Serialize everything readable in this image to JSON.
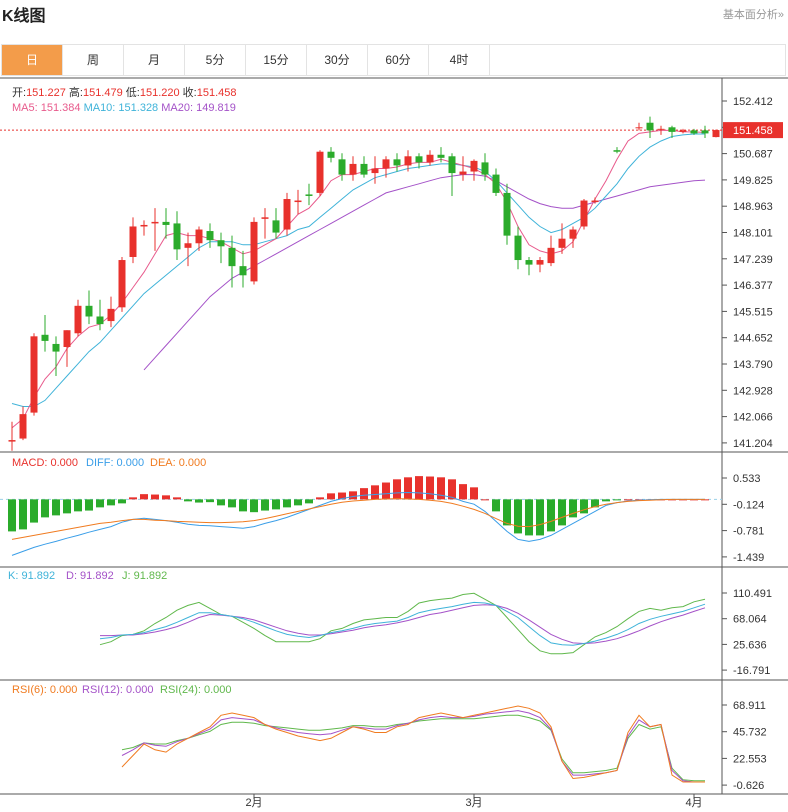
{
  "header": {
    "title": "K线图",
    "link": "基本面分析»"
  },
  "tabs": [
    "日",
    "周",
    "月",
    "5分",
    "15分",
    "30分",
    "60分",
    "4时"
  ],
  "info": {
    "open_label": "开:",
    "open": "151.227",
    "high_label": "高:",
    "high": "151.479",
    "low_label": "低:",
    "low": "151.220",
    "close_label": "收:",
    "close": "151.458",
    "ma5_label": "MA5:",
    "ma5": "151.384",
    "ma10_label": "MA10:",
    "ma10": "151.328",
    "ma20_label": "MA20:",
    "ma20": "149.819"
  },
  "macd_legend": {
    "macd": "MACD: 0.000",
    "diff": "DIFF: 0.000",
    "dea": "DEA: 0.000"
  },
  "kdj_legend": {
    "k": "K: 91.892",
    "d": "D: 91.892",
    "j": "J: 91.892"
  },
  "rsi_legend": {
    "r6": "RSI(6): 0.000",
    "r12": "RSI(12): 0.000",
    "r24": "RSI(24): 0.000"
  },
  "price_axis": [
    "152.412",
    "151.550",
    "150.687",
    "149.825",
    "148.963",
    "148.101",
    "147.239",
    "146.377",
    "145.515",
    "144.652",
    "143.790",
    "142.928",
    "142.066",
    "141.204"
  ],
  "last_price": "151.458",
  "macd_axis": [
    "0.533",
    "-0.124",
    "-0.781",
    "-1.439"
  ],
  "kdj_axis": [
    "110.491",
    "68.064",
    "25.636",
    "-16.791"
  ],
  "rsi_axis": [
    "68.911",
    "45.732",
    "22.553",
    "-0.626"
  ],
  "x_labels": [
    {
      "text": "2月",
      "index": 21
    },
    {
      "text": "3月",
      "index": 41
    },
    {
      "text": "4月",
      "index": 61
    }
  ],
  "colors": {
    "up": "#e8312c",
    "down": "#2bab2b",
    "ma5": "#e85a8c",
    "ma10": "#3fb3d9",
    "ma20": "#a452c8",
    "accent": "#f39c4a",
    "diff": "#3a9ee8",
    "dea": "#f07b20",
    "j": "#60b84c"
  },
  "chart_data": {
    "type": "candlestick",
    "price_range": [
      140.9,
      152.8
    ],
    "candles": [
      {
        "o": 141.25,
        "h": 141.9,
        "l": 140.95,
        "c": 141.3
      },
      {
        "o": 141.35,
        "h": 142.4,
        "l": 141.3,
        "c": 142.15
      },
      {
        "o": 142.2,
        "h": 144.8,
        "l": 142.1,
        "c": 144.7
      },
      {
        "o": 144.75,
        "h": 145.4,
        "l": 144.2,
        "c": 144.55
      },
      {
        "o": 144.45,
        "h": 144.7,
        "l": 143.4,
        "c": 144.2
      },
      {
        "o": 144.35,
        "h": 144.9,
        "l": 143.7,
        "c": 144.9
      },
      {
        "o": 144.8,
        "h": 145.9,
        "l": 144.7,
        "c": 145.7
      },
      {
        "o": 145.7,
        "h": 146.2,
        "l": 145.1,
        "c": 145.35
      },
      {
        "o": 145.35,
        "h": 145.9,
        "l": 144.9,
        "c": 145.1
      },
      {
        "o": 145.2,
        "h": 146.0,
        "l": 145.0,
        "c": 145.6
      },
      {
        "o": 145.65,
        "h": 147.3,
        "l": 145.5,
        "c": 147.2
      },
      {
        "o": 147.3,
        "h": 148.6,
        "l": 147.1,
        "c": 148.3
      },
      {
        "o": 148.3,
        "h": 148.5,
        "l": 148.0,
        "c": 148.35
      },
      {
        "o": 148.4,
        "h": 148.9,
        "l": 147.5,
        "c": 148.45
      },
      {
        "o": 148.45,
        "h": 148.9,
        "l": 147.9,
        "c": 148.35
      },
      {
        "o": 148.4,
        "h": 148.8,
        "l": 147.2,
        "c": 147.55
      },
      {
        "o": 147.6,
        "h": 148.1,
        "l": 147.0,
        "c": 147.75
      },
      {
        "o": 147.75,
        "h": 148.3,
        "l": 147.5,
        "c": 148.2
      },
      {
        "o": 148.15,
        "h": 148.4,
        "l": 147.6,
        "c": 147.85
      },
      {
        "o": 147.85,
        "h": 148.1,
        "l": 147.1,
        "c": 147.65
      },
      {
        "o": 147.6,
        "h": 148.0,
        "l": 146.3,
        "c": 147.0
      },
      {
        "o": 147.0,
        "h": 147.5,
        "l": 146.3,
        "c": 146.7
      },
      {
        "o": 146.5,
        "h": 148.6,
        "l": 146.4,
        "c": 148.45
      },
      {
        "o": 148.55,
        "h": 148.9,
        "l": 147.9,
        "c": 148.6
      },
      {
        "o": 148.5,
        "h": 148.9,
        "l": 147.9,
        "c": 148.1
      },
      {
        "o": 148.2,
        "h": 149.4,
        "l": 148.0,
        "c": 149.2
      },
      {
        "o": 149.1,
        "h": 149.5,
        "l": 148.7,
        "c": 149.15
      },
      {
        "o": 149.35,
        "h": 149.7,
        "l": 149.0,
        "c": 149.3
      },
      {
        "o": 149.4,
        "h": 150.8,
        "l": 149.3,
        "c": 150.75
      },
      {
        "o": 150.75,
        "h": 150.9,
        "l": 150.4,
        "c": 150.55
      },
      {
        "o": 150.5,
        "h": 150.7,
        "l": 149.8,
        "c": 150.0
      },
      {
        "o": 150.0,
        "h": 150.6,
        "l": 149.8,
        "c": 150.35
      },
      {
        "o": 150.35,
        "h": 150.6,
        "l": 149.9,
        "c": 150.0
      },
      {
        "o": 150.05,
        "h": 150.6,
        "l": 149.7,
        "c": 150.2
      },
      {
        "o": 150.2,
        "h": 150.6,
        "l": 149.9,
        "c": 150.5
      },
      {
        "o": 150.5,
        "h": 150.7,
        "l": 150.1,
        "c": 150.3
      },
      {
        "o": 150.3,
        "h": 150.8,
        "l": 150.1,
        "c": 150.6
      },
      {
        "o": 150.6,
        "h": 150.7,
        "l": 150.2,
        "c": 150.4
      },
      {
        "o": 150.4,
        "h": 150.8,
        "l": 150.3,
        "c": 150.65
      },
      {
        "o": 150.65,
        "h": 150.9,
        "l": 150.4,
        "c": 150.55
      },
      {
        "o": 150.6,
        "h": 150.7,
        "l": 149.3,
        "c": 150.05
      },
      {
        "o": 150.0,
        "h": 150.6,
        "l": 149.8,
        "c": 150.1
      },
      {
        "o": 150.1,
        "h": 150.5,
        "l": 149.8,
        "c": 150.45
      },
      {
        "o": 150.4,
        "h": 150.7,
        "l": 149.8,
        "c": 150.0
      },
      {
        "o": 150.0,
        "h": 150.2,
        "l": 149.3,
        "c": 149.4
      },
      {
        "o": 149.4,
        "h": 149.7,
        "l": 147.7,
        "c": 148.0
      },
      {
        "o": 148.0,
        "h": 148.3,
        "l": 146.9,
        "c": 147.2
      },
      {
        "o": 147.2,
        "h": 147.3,
        "l": 146.7,
        "c": 147.05
      },
      {
        "o": 147.05,
        "h": 147.3,
        "l": 146.8,
        "c": 147.2
      },
      {
        "o": 147.1,
        "h": 148.0,
        "l": 147.0,
        "c": 147.6
      },
      {
        "o": 147.6,
        "h": 148.4,
        "l": 147.4,
        "c": 147.9
      },
      {
        "o": 147.9,
        "h": 148.3,
        "l": 147.6,
        "c": 148.2
      },
      {
        "o": 148.3,
        "h": 149.2,
        "l": 148.2,
        "c": 149.15
      },
      {
        "o": 149.1,
        "h": 149.25,
        "l": 149.05,
        "c": 149.15
      },
      null,
      {
        "o": 150.8,
        "h": 150.9,
        "l": 150.7,
        "c": 150.75
      },
      null,
      {
        "o": 151.55,
        "h": 151.7,
        "l": 151.45,
        "c": 151.55
      },
      {
        "o": 151.7,
        "h": 151.9,
        "l": 151.2,
        "c": 151.45
      },
      {
        "o": 151.5,
        "h": 151.6,
        "l": 151.3,
        "c": 151.5
      },
      {
        "o": 151.55,
        "h": 151.6,
        "l": 151.2,
        "c": 151.4
      },
      {
        "o": 151.4,
        "h": 151.5,
        "l": 151.35,
        "c": 151.45
      },
      {
        "o": 151.45,
        "h": 151.5,
        "l": 151.3,
        "c": 151.35
      },
      {
        "o": 151.45,
        "h": 151.6,
        "l": 151.2,
        "c": 151.35
      },
      {
        "o": 151.23,
        "h": 151.48,
        "l": 151.22,
        "c": 151.46
      }
    ],
    "ma5": [
      141.7,
      142.0,
      142.7,
      143.3,
      143.7,
      144.3,
      144.7,
      145.0,
      145.1,
      145.4,
      145.8,
      146.3,
      146.8,
      147.4,
      148.0,
      148.1,
      148.0,
      148.0,
      147.9,
      147.8,
      147.6,
      147.4,
      147.5,
      147.7,
      147.9,
      148.3,
      148.7,
      148.9,
      149.3,
      149.8,
      150.0,
      150.0,
      150.1,
      150.2,
      150.2,
      150.25,
      150.35,
      150.4,
      150.4,
      150.5,
      150.4,
      150.3,
      150.2,
      150.0,
      149.7,
      149.1,
      148.3,
      147.7,
      147.5,
      147.4,
      147.5,
      147.8,
      148.5,
      149.2,
      149.8,
      150.5,
      151.1,
      151.35,
      151.4,
      151.45,
      151.45,
      151.4,
      151.4,
      151.38
    ],
    "ma10": [
      142.5,
      142.4,
      142.4,
      142.6,
      143.0,
      143.4,
      143.8,
      144.2,
      144.5,
      144.9,
      145.3,
      145.7,
      146.1,
      146.4,
      146.7,
      147.0,
      147.3,
      147.6,
      147.8,
      147.8,
      147.8,
      147.7,
      147.7,
      147.8,
      147.9,
      148.0,
      148.2,
      148.3,
      148.6,
      148.9,
      149.2,
      149.5,
      149.7,
      149.9,
      150.0,
      150.1,
      150.2,
      150.25,
      150.3,
      150.35,
      150.35,
      150.3,
      150.25,
      150.1,
      149.8,
      149.4,
      149.0,
      148.6,
      148.3,
      148.1,
      148.2,
      148.4,
      148.6,
      148.9,
      149.3,
      149.7,
      150.2,
      150.6,
      150.9,
      151.1,
      151.25,
      151.3,
      151.33,
      151.33
    ],
    "ma20": [
      null,
      null,
      null,
      null,
      null,
      null,
      null,
      null,
      null,
      null,
      null,
      null,
      143.6,
      144.0,
      144.4,
      144.8,
      145.2,
      145.6,
      146.0,
      146.3,
      146.6,
      146.8,
      147.0,
      147.2,
      147.4,
      147.6,
      147.8,
      148.0,
      148.2,
      148.4,
      148.6,
      148.8,
      149.0,
      149.2,
      149.4,
      149.5,
      149.6,
      149.7,
      149.8,
      149.9,
      149.95,
      150.0,
      150.0,
      149.95,
      149.8,
      149.6,
      149.4,
      149.2,
      149.05,
      148.95,
      148.9,
      148.9,
      149.0,
      149.1,
      149.2,
      149.3,
      149.4,
      149.5,
      149.6,
      149.65,
      149.7,
      149.75,
      149.8,
      149.82
    ],
    "macd_range": [
      -1.6,
      0.8
    ],
    "macd": [
      -0.8,
      -0.75,
      -0.58,
      -0.45,
      -0.4,
      -0.35,
      -0.3,
      -0.28,
      -0.2,
      -0.15,
      -0.1,
      0.05,
      0.13,
      0.12,
      0.1,
      0.05,
      -0.05,
      -0.08,
      -0.07,
      -0.15,
      -0.2,
      -0.3,
      -0.32,
      -0.28,
      -0.25,
      -0.2,
      -0.15,
      -0.1,
      0.05,
      0.15,
      0.17,
      0.2,
      0.28,
      0.35,
      0.42,
      0.5,
      0.55,
      0.58,
      0.57,
      0.55,
      0.5,
      0.38,
      0.3,
      0.0,
      -0.3,
      -0.65,
      -0.85,
      -0.9,
      -0.9,
      -0.8,
      -0.65,
      -0.45,
      -0.35,
      -0.2,
      -0.05,
      -0.02,
      0.0,
      0.0,
      0.0,
      0.0,
      0.0,
      0.0,
      0.0,
      0.0
    ],
    "diff": [
      -1.4,
      -1.3,
      -1.2,
      -1.12,
      -1.05,
      -0.97,
      -0.9,
      -0.82,
      -0.75,
      -0.68,
      -0.57,
      -0.5,
      -0.47,
      -0.5,
      -0.53,
      -0.57,
      -0.62,
      -0.65,
      -0.66,
      -0.68,
      -0.7,
      -0.72,
      -0.68,
      -0.6,
      -0.53,
      -0.45,
      -0.35,
      -0.25,
      -0.15,
      -0.05,
      0.02,
      0.07,
      0.1,
      0.12,
      0.14,
      0.16,
      0.17,
      0.16,
      0.14,
      0.1,
      0.05,
      -0.05,
      -0.12,
      -0.3,
      -0.55,
      -0.8,
      -1.0,
      -1.05,
      -1.0,
      -0.9,
      -0.75,
      -0.6,
      -0.45,
      -0.3,
      -0.15,
      -0.08,
      -0.04,
      -0.02,
      -0.01,
      0.0,
      0.0,
      0.0,
      0.0,
      0.0
    ],
    "dea": [
      -1.0,
      -0.95,
      -0.9,
      -0.85,
      -0.8,
      -0.75,
      -0.7,
      -0.65,
      -0.6,
      -0.57,
      -0.53,
      -0.5,
      -0.5,
      -0.52,
      -0.53,
      -0.55,
      -0.56,
      -0.57,
      -0.58,
      -0.58,
      -0.57,
      -0.56,
      -0.53,
      -0.48,
      -0.42,
      -0.36,
      -0.3,
      -0.24,
      -0.18,
      -0.12,
      -0.07,
      -0.04,
      -0.02,
      0.0,
      0.01,
      0.02,
      0.01,
      0.0,
      -0.02,
      -0.05,
      -0.1,
      -0.17,
      -0.25,
      -0.35,
      -0.48,
      -0.6,
      -0.67,
      -0.68,
      -0.63,
      -0.55,
      -0.45,
      -0.35,
      -0.26,
      -0.18,
      -0.12,
      -0.08,
      -0.05,
      -0.03,
      -0.02,
      -0.01,
      0.0,
      0.0,
      0.0,
      0.0
    ],
    "kdj_range": [
      -26,
      120
    ],
    "k": [
      35,
      37,
      41,
      42,
      45,
      50,
      55,
      62,
      70,
      78,
      78,
      75,
      72,
      68,
      62,
      55,
      48,
      42,
      39,
      37,
      40,
      45,
      48,
      52,
      57,
      60,
      62,
      64,
      70,
      78,
      82,
      85,
      88,
      92,
      95,
      94,
      90,
      80,
      70,
      55,
      40,
      28,
      25,
      24,
      27,
      31,
      36,
      42,
      50,
      60,
      67,
      72,
      76,
      80,
      86,
      92
    ],
    "d": [
      40,
      40,
      41,
      41,
      43,
      46,
      50,
      55,
      62,
      70,
      75,
      74,
      72,
      70,
      66,
      60,
      54,
      48,
      44,
      41,
      41,
      43,
      46,
      49,
      53,
      56,
      58,
      61,
      65,
      70,
      75,
      78,
      82,
      86,
      90,
      91,
      90,
      85,
      77,
      66,
      54,
      42,
      34,
      28,
      27,
      28,
      31,
      35,
      41,
      48,
      56,
      63,
      69,
      74,
      80,
      86
    ],
    "j": [
      25,
      30,
      40,
      42,
      48,
      60,
      70,
      82,
      90,
      95,
      85,
      75,
      72,
      62,
      52,
      40,
      30,
      30,
      30,
      30,
      35,
      48,
      52,
      60,
      66,
      68,
      70,
      70,
      80,
      94,
      98,
      100,
      102,
      108,
      110,
      100,
      90,
      70,
      50,
      30,
      15,
      10,
      10,
      12,
      25,
      38,
      45,
      55,
      68,
      80,
      85,
      82,
      86,
      88,
      96,
      100
    ],
    "rsi_range": [
      -10,
      80
    ],
    "rsi6": [
      15,
      25,
      35,
      30,
      28,
      35,
      40,
      45,
      50,
      60,
      62,
      60,
      58,
      52,
      48,
      45,
      42,
      40,
      38,
      40,
      45,
      50,
      48,
      45,
      45,
      50,
      52,
      58,
      60,
      62,
      60,
      58,
      60,
      62,
      64,
      66,
      68,
      66,
      62,
      50,
      20,
      5,
      6,
      8,
      10,
      12,
      45,
      60,
      50,
      52,
      8,
      2,
      2,
      2
    ],
    "rsi12": [
      25,
      30,
      36,
      34,
      33,
      37,
      40,
      44,
      48,
      56,
      58,
      57,
      56,
      52,
      49,
      47,
      45,
      44,
      43,
      44,
      47,
      50,
      49,
      48,
      48,
      51,
      53,
      56,
      58,
      59,
      58,
      58,
      59,
      61,
      62,
      63,
      64,
      62,
      58,
      48,
      20,
      8,
      8,
      9,
      10,
      12,
      42,
      56,
      50,
      52,
      12,
      3,
      2,
      2
    ],
    "rsi24": [
      30,
      32,
      36,
      35,
      35,
      38,
      40,
      43,
      46,
      52,
      54,
      54,
      53,
      51,
      50,
      49,
      48,
      47,
      47,
      48,
      49,
      51,
      51,
      50,
      50,
      52,
      53,
      55,
      56,
      57,
      57,
      57,
      57,
      58,
      59,
      60,
      60,
      58,
      55,
      47,
      22,
      10,
      10,
      11,
      12,
      14,
      40,
      52,
      48,
      50,
      14,
      4,
      3,
      3
    ]
  }
}
